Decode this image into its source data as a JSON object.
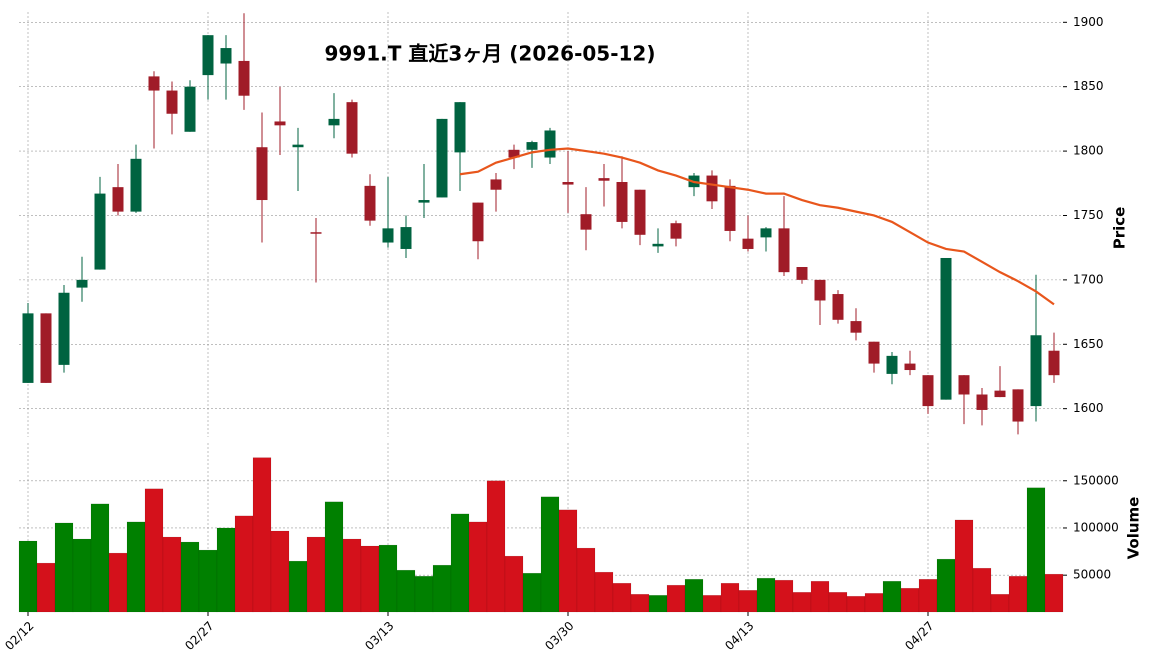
{
  "chart_data": {
    "type": "candlestick",
    "title": "9991.T  直近3ヶ月 (2026-05-12)",
    "ylabel": "Price",
    "categories": [
      "02/12",
      null,
      null,
      null,
      null,
      null,
      null,
      null,
      null,
      null,
      "02/27",
      null,
      null,
      null,
      null,
      null,
      null,
      null,
      null,
      null,
      "03/13",
      null,
      null,
      null,
      null,
      null,
      null,
      null,
      null,
      null,
      "03/30",
      null,
      null,
      null,
      null,
      null,
      null,
      null,
      null,
      null,
      "04/13",
      null,
      null,
      null,
      null,
      null,
      null,
      null,
      null,
      null,
      "04/27",
      null,
      null,
      null,
      null,
      null,
      null,
      null
    ],
    "open": [
      1620,
      1674,
      1634,
      1694,
      1708,
      1772,
      1753,
      1858,
      1847,
      1815,
      1859,
      1868,
      1870,
      1803,
      1823,
      1803,
      1737,
      1820,
      1838,
      1773,
      1729,
      1724,
      1760,
      1764,
      1799,
      1760,
      1778,
      1801,
      1801,
      1795,
      1776,
      1751,
      1779,
      1776,
      1770,
      1726,
      1744,
      1772,
      1781,
      1773,
      1732,
      1733,
      1740,
      1710,
      1700,
      1689,
      1668,
      1652,
      1627,
      1635,
      1626,
      1607,
      1626,
      1611,
      1614,
      1615,
      1602,
      1645
    ],
    "high": [
      1682,
      1674,
      1696,
      1718,
      1780,
      1790,
      1805,
      1862,
      1854,
      1855,
      1890,
      1890,
      1907,
      1830,
      1850,
      1818,
      1748,
      1845,
      1840,
      1782,
      1780,
      1750,
      1790,
      1825,
      1838,
      1760,
      1783,
      1805,
      1808,
      1818,
      1800,
      1772,
      1790,
      1796,
      1770,
      1740,
      1746,
      1783,
      1785,
      1778,
      1750,
      1741,
      1765,
      1710,
      1700,
      1692,
      1678,
      1652,
      1644,
      1645,
      1626,
      1717,
      1626,
      1616,
      1633,
      1615,
      1704,
      1659
    ],
    "low": [
      1620,
      1620,
      1628,
      1683,
      1708,
      1750,
      1752,
      1802,
      1813,
      1815,
      1840,
      1840,
      1832,
      1729,
      1797,
      1769,
      1698,
      1810,
      1795,
      1742,
      1725,
      1717,
      1748,
      1764,
      1769,
      1716,
      1753,
      1786,
      1787,
      1790,
      1752,
      1723,
      1757,
      1740,
      1727,
      1721,
      1726,
      1765,
      1755,
      1730,
      1722,
      1722,
      1703,
      1697,
      1665,
      1666,
      1653,
      1628,
      1619,
      1626,
      1596,
      1607,
      1588,
      1587,
      1609,
      1580,
      1590,
      1620
    ],
    "close": [
      1674,
      1620,
      1690,
      1700,
      1767,
      1753,
      1794,
      1847,
      1829,
      1850,
      1890,
      1880,
      1843,
      1762,
      1820,
      1805,
      1736,
      1825,
      1798,
      1746,
      1740,
      1741,
      1762,
      1825,
      1838,
      1730,
      1770,
      1795,
      1807,
      1816,
      1774,
      1739,
      1777,
      1745,
      1735,
      1728,
      1732,
      1781,
      1761,
      1738,
      1724,
      1740,
      1706,
      1700,
      1684,
      1669,
      1659,
      1635,
      1641,
      1630,
      1602,
      1717,
      1611,
      1599,
      1609,
      1590,
      1657,
      1626
    ],
    "up_color": "#006340",
    "down_color": "#a01c28",
    "ma_values": [
      null,
      null,
      null,
      null,
      null,
      null,
      null,
      null,
      null,
      null,
      null,
      null,
      null,
      null,
      null,
      null,
      null,
      null,
      null,
      null,
      null,
      null,
      null,
      null,
      1782,
      1784,
      1791,
      1795,
      1799,
      1801,
      1802,
      1800,
      1798,
      1795,
      1791,
      1785,
      1781,
      1776,
      1774,
      1772,
      1770,
      1767,
      1767,
      1762,
      1758,
      1756,
      1753,
      1750,
      1745,
      1737,
      1729,
      1724,
      1722,
      1714,
      1706,
      1699,
      1691,
      1681
    ],
    "ma_color": "#e8561c",
    "ylim": [
      1578,
      1908
    ],
    "yticks": [
      1600,
      1650,
      1700,
      1750,
      1800,
      1850,
      1900
    ],
    "grid": true,
    "volume": {
      "ylabel": "Volume",
      "values": [
        86200,
        62800,
        105300,
        88300,
        125500,
        73400,
        106400,
        141500,
        90400,
        85100,
        76600,
        100000,
        112800,
        174500,
        96800,
        64900,
        90400,
        127700,
        88300,
        80900,
        81900,
        55300,
        48900,
        60600,
        114900,
        106400,
        150000,
        70200,
        52100,
        133000,
        119200,
        78700,
        53200,
        41500,
        29800,
        28700,
        39400,
        45700,
        28700,
        41500,
        34000,
        46800,
        44700,
        31900,
        43600,
        31900,
        27700,
        30800,
        43600,
        36200,
        45700,
        67000,
        108500,
        57400,
        29800,
        48900,
        142600,
        51100
      ],
      "up_color": "#008000",
      "down_color": "#d4111b",
      "ylim": [
        11000,
        190000
      ],
      "yticks": [
        50000,
        100000,
        150000
      ]
    }
  }
}
